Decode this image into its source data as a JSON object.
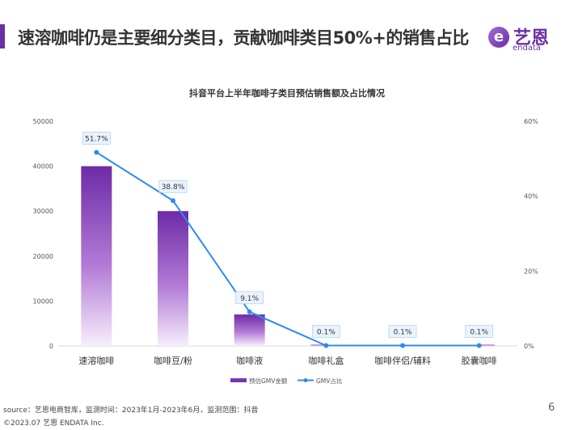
{
  "header": {
    "title": "速溶咖啡仍是主要细分类目，贡献咖啡类目50%+的销售占比",
    "logo_cn": "艺恩",
    "logo_en": "endata",
    "logo_mark": "e"
  },
  "footer": {
    "source": "source：艺恩电商智库，监测时间：2023年1月-2023年6月，监测范围：抖音",
    "copyright": "©2023.07 艺恩 ENDATA Inc.",
    "page": "6"
  },
  "chart_data": {
    "type": "bar",
    "title": "抖音平台上半年咖啡子类目预估销售额及占比情况",
    "categories": [
      "速溶咖啡",
      "咖啡豆/粉",
      "咖啡液",
      "咖啡礼盒",
      "咖啡伴侣/辅料",
      "胶囊咖啡"
    ],
    "series": [
      {
        "name": "预估GMV金额",
        "type": "bar",
        "axis": "left",
        "values": [
          40000,
          30000,
          7000,
          100,
          80,
          90
        ]
      },
      {
        "name": "GMV占比",
        "type": "line",
        "axis": "right",
        "values": [
          51.7,
          38.8,
          9.1,
          0.1,
          0.1,
          0.1
        ],
        "labels": [
          "51.7%",
          "38.8%",
          "9.1%",
          "0.1%",
          "0.1%",
          "0.1%"
        ]
      }
    ],
    "ylim": [
      0,
      50000
    ],
    "yticks": [
      "0",
      "10000",
      "20000",
      "30000",
      "40000",
      "50000"
    ],
    "y2lim": [
      0,
      60
    ],
    "y2ticks": [
      "0%",
      "20%",
      "40%",
      "60%"
    ],
    "colors": {
      "bar": "#7a35ad",
      "line": "#2e8bf0"
    },
    "legend": "bottom-center",
    "grid": false
  }
}
